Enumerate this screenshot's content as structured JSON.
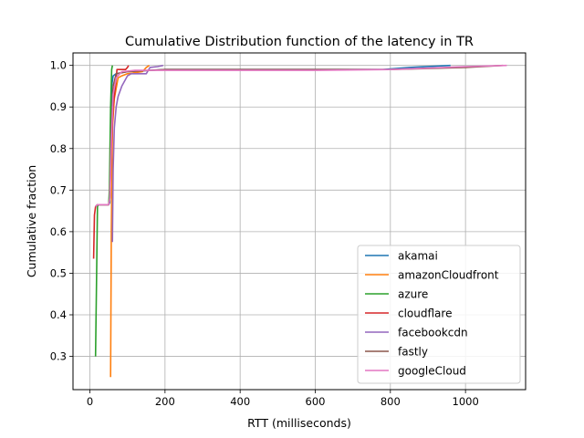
{
  "chart_data": {
    "type": "line",
    "title": "Cumulative Distribution function of the latency in TR",
    "xlabel": "RTT (milliseconds)",
    "ylabel": "Cumulative fraction",
    "xlim": [
      -45,
      1160
    ],
    "ylim": [
      0.22,
      1.03
    ],
    "xticks": [
      0,
      200,
      400,
      600,
      800,
      1000
    ],
    "yticks": [
      0.3,
      0.4,
      0.5,
      0.6,
      0.7,
      0.8,
      0.9,
      1.0
    ],
    "xtick_labels": [
      "0",
      "200",
      "400",
      "600",
      "800",
      "1000"
    ],
    "ytick_labels": [
      "0.3",
      "0.4",
      "0.5",
      "0.6",
      "0.7",
      "0.8",
      "0.9",
      "1.0"
    ],
    "grid": true,
    "legend_position": "lower-right",
    "series": [
      {
        "name": "akamai",
        "color": "#1f77b4",
        "points": [
          [
            15,
            0.66
          ],
          [
            20,
            0.665
          ],
          [
            50,
            0.665
          ],
          [
            53,
            0.67
          ],
          [
            55,
            0.85
          ],
          [
            58,
            0.95
          ],
          [
            62,
            0.975
          ],
          [
            70,
            0.98
          ],
          [
            100,
            0.985
          ],
          [
            200,
            0.99
          ],
          [
            400,
            0.99
          ],
          [
            600,
            0.99
          ],
          [
            780,
            0.99
          ],
          [
            850,
            0.995
          ],
          [
            960,
            1.0
          ]
        ]
      },
      {
        "name": "amazonCloudfront",
        "color": "#ff7f0e",
        "points": [
          [
            55,
            0.25
          ],
          [
            57,
            0.6
          ],
          [
            60,
            0.85
          ],
          [
            65,
            0.92
          ],
          [
            75,
            0.97
          ],
          [
            85,
            0.975
          ],
          [
            100,
            0.98
          ],
          [
            140,
            0.985
          ],
          [
            150,
            0.995
          ],
          [
            158,
            1.0
          ]
        ]
      },
      {
        "name": "azure",
        "color": "#2ca02c",
        "points": [
          [
            15,
            0.3
          ],
          [
            18,
            0.5
          ],
          [
            20,
            0.66
          ],
          [
            22,
            0.665
          ],
          [
            50,
            0.665
          ],
          [
            52,
            0.7
          ],
          [
            55,
            0.9
          ],
          [
            58,
            0.99
          ],
          [
            60,
            1.0
          ]
        ]
      },
      {
        "name": "cloudflare",
        "color": "#d62728",
        "points": [
          [
            10,
            0.535
          ],
          [
            12,
            0.64
          ],
          [
            15,
            0.66
          ],
          [
            20,
            0.665
          ],
          [
            50,
            0.665
          ],
          [
            53,
            0.68
          ],
          [
            57,
            0.8
          ],
          [
            62,
            0.9
          ],
          [
            68,
            0.95
          ],
          [
            72,
            0.99
          ],
          [
            95,
            0.99
          ],
          [
            100,
            0.995
          ],
          [
            103,
            1.0
          ]
        ]
      },
      {
        "name": "facebookcdn",
        "color": "#9467bd",
        "points": [
          [
            60,
            0.575
          ],
          [
            62,
            0.75
          ],
          [
            65,
            0.85
          ],
          [
            70,
            0.9
          ],
          [
            75,
            0.925
          ],
          [
            85,
            0.95
          ],
          [
            100,
            0.975
          ],
          [
            110,
            0.98
          ],
          [
            150,
            0.98
          ],
          [
            160,
            0.995
          ],
          [
            180,
            0.997
          ],
          [
            195,
            1.0
          ]
        ]
      },
      {
        "name": "fastly",
        "color": "#8c564b",
        "points": [
          [
            15,
            0.66
          ],
          [
            20,
            0.665
          ],
          [
            50,
            0.665
          ],
          [
            53,
            0.68
          ],
          [
            57,
            0.85
          ],
          [
            62,
            0.95
          ],
          [
            70,
            0.98
          ],
          [
            100,
            0.985
          ],
          [
            200,
            0.99
          ],
          [
            400,
            0.99
          ],
          [
            600,
            0.99
          ],
          [
            800,
            0.99
          ],
          [
            1000,
            0.995
          ],
          [
            1100,
            1.0
          ]
        ]
      },
      {
        "name": "googleCloud",
        "color": "#e377c2",
        "points": [
          [
            15,
            0.66
          ],
          [
            20,
            0.665
          ],
          [
            50,
            0.665
          ],
          [
            53,
            0.68
          ],
          [
            57,
            0.82
          ],
          [
            62,
            0.93
          ],
          [
            70,
            0.97
          ],
          [
            85,
            0.985
          ],
          [
            120,
            0.988
          ],
          [
            200,
            0.988
          ],
          [
            400,
            0.988
          ],
          [
            600,
            0.988
          ],
          [
            800,
            0.99
          ],
          [
            1000,
            0.997
          ],
          [
            1110,
            1.0
          ]
        ]
      }
    ]
  }
}
